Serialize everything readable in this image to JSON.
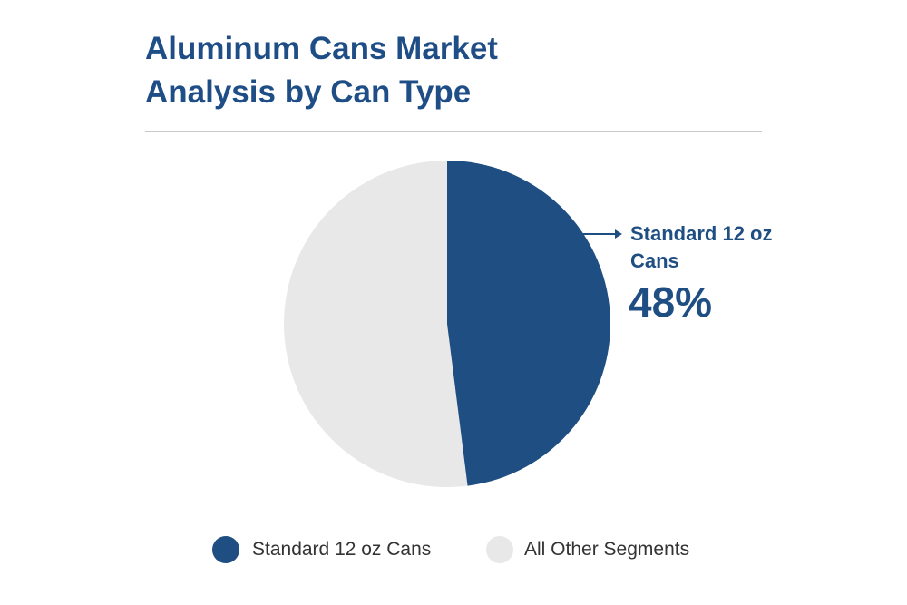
{
  "chart_data": {
    "type": "pie",
    "title": "Aluminum Cans Market Analysis by Can Type",
    "categories": [
      "Standard 12 oz Cans",
      "All Other Segments"
    ],
    "values": [
      48,
      52
    ],
    "value_labels": [
      "48%",
      null
    ],
    "colors": [
      "#1f4e82",
      "#e8e8e8"
    ],
    "legend": "bottom"
  }
}
